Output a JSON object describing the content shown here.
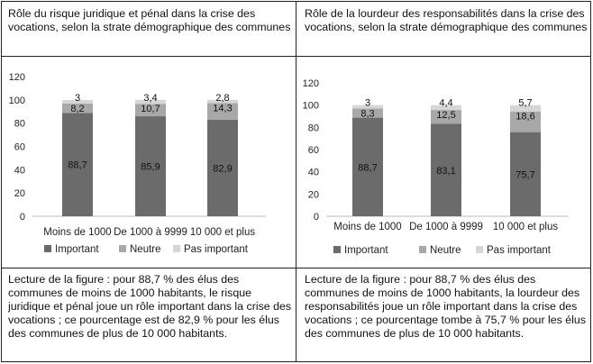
{
  "panels": [
    {
      "title": "Rôle du risque juridique et pénal dans la crise des vocations, selon la strate démographique des communes",
      "caption": "Lecture de la figure : pour 88,7 % des élus des communes de moins de 1000 habitants, le risque juridique et pénal joue un rôle important dans la crise des vocations ; ce pourcentage est de 82,9 % pour les élus des communes de plus de 10 000 habitants."
    },
    {
      "title": "Rôle de la lourdeur des responsabilités dans la crise des vocations, selon la strate démographique des communes",
      "caption": "Lecture de la figure : pour 88,7 % des élus des communes de moins de 1000 habitants, la lourdeur des responsabilités joue un rôle important dans la crise des vocations ; ce pourcentage tombe à 75,7 % pour les élus des communes de plus de 10 000 habitants."
    }
  ],
  "colors": {
    "Important": "#6b6b6b",
    "Neutre": "#a8a8a8",
    "Pas important": "#d6d6d6"
  },
  "chart_data": [
    {
      "type": "bar",
      "stacked": true,
      "categories": [
        "Moins de 1000",
        "De 1000 à 9999",
        "10 000 et plus"
      ],
      "series": [
        {
          "name": "Important",
          "values": [
            88.7,
            85.9,
            82.9
          ],
          "labels": [
            "88,7",
            "85,9",
            "82,9"
          ]
        },
        {
          "name": "Neutre",
          "values": [
            8.2,
            10.7,
            14.3
          ],
          "labels": [
            "8,2",
            "10,7",
            "14,3"
          ]
        },
        {
          "name": "Pas important",
          "values": [
            3,
            3.4,
            2.8
          ],
          "labels": [
            "3",
            "3,4",
            "2,8"
          ]
        }
      ],
      "yticks": [
        0,
        20,
        40,
        60,
        80,
        100,
        120
      ],
      "ylim": [
        0,
        120
      ],
      "grid": false,
      "legend": "bottom"
    },
    {
      "type": "bar",
      "stacked": true,
      "categories": [
        "Moins de 1000",
        "De 1000 à 9999",
        "10 000 et plus"
      ],
      "series": [
        {
          "name": "Important",
          "values": [
            88.7,
            83.1,
            75.7
          ],
          "labels": [
            "88,7",
            "83,1",
            "75,7"
          ]
        },
        {
          "name": "Neutre",
          "values": [
            8.3,
            12.5,
            18.6
          ],
          "labels": [
            "8,3",
            "12,5",
            "18,6"
          ]
        },
        {
          "name": "Pas important",
          "values": [
            3,
            4.4,
            5.7
          ],
          "labels": [
            "3",
            "4,4",
            "5,7"
          ]
        }
      ],
      "yticks": [
        0,
        20,
        40,
        60,
        80,
        100,
        120
      ],
      "ylim": [
        0,
        120
      ],
      "grid": false,
      "legend": "bottom"
    }
  ]
}
